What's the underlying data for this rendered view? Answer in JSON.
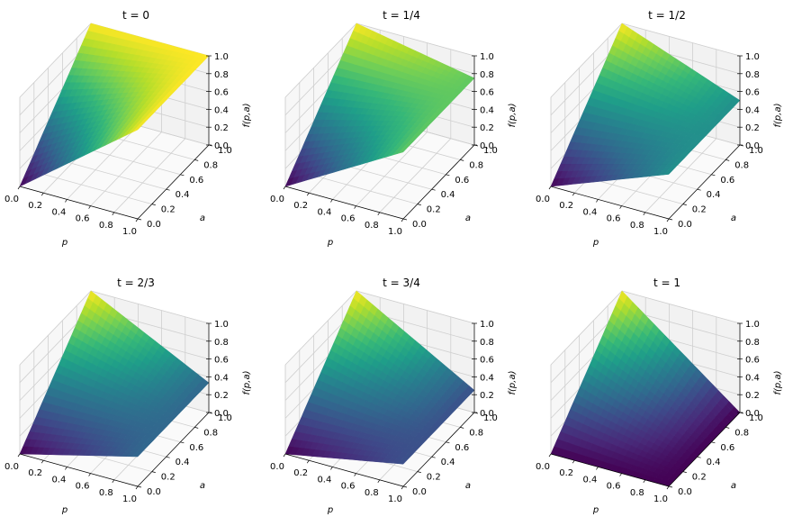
{
  "chart_data": {
    "type": "surface3d",
    "colormap": "viridis",
    "grid": true,
    "subplots": [
      {
        "title": "t = 0",
        "title_fn": "t=0",
        "t": 0
      },
      {
        "title": "t = 1/4",
        "title_fn": "t=1/4",
        "t": 0.25
      },
      {
        "title": "t = 1/2",
        "title_fn": "t=1/2",
        "t": 0.5
      },
      {
        "title": "t = 2/3",
        "title_fn": "t=2/3",
        "t": 0.6667
      },
      {
        "title": "t = 3/4",
        "title_fn": "t=3/4",
        "t": 0.75
      },
      {
        "title": "t = 1",
        "title_fn": "t=1",
        "t": 1
      }
    ],
    "xlabel": "p",
    "ylabel": "a",
    "zlabel": "f(p,a)",
    "xlim": [
      0,
      1
    ],
    "ylim": [
      0,
      1
    ],
    "zlim": [
      0,
      1
    ],
    "xticks": [
      "0.0",
      "0.2",
      "0.4",
      "0.6",
      "0.8",
      "1.0"
    ],
    "yticks": [
      "0.0",
      "0.2",
      "0.4",
      "0.6",
      "0.8",
      "1.0"
    ],
    "zticks": [
      "0.0",
      "0.2",
      "0.4",
      "0.6",
      "0.8",
      "1.0"
    ]
  },
  "colors": {
    "pane": "#f2f2f2",
    "grid": "#cfcfcf",
    "viridis": [
      "#440154",
      "#482878",
      "#3e4989",
      "#31688e",
      "#26828e",
      "#1f9e89",
      "#35b779",
      "#6ece58",
      "#b5de2b",
      "#fde725"
    ]
  }
}
